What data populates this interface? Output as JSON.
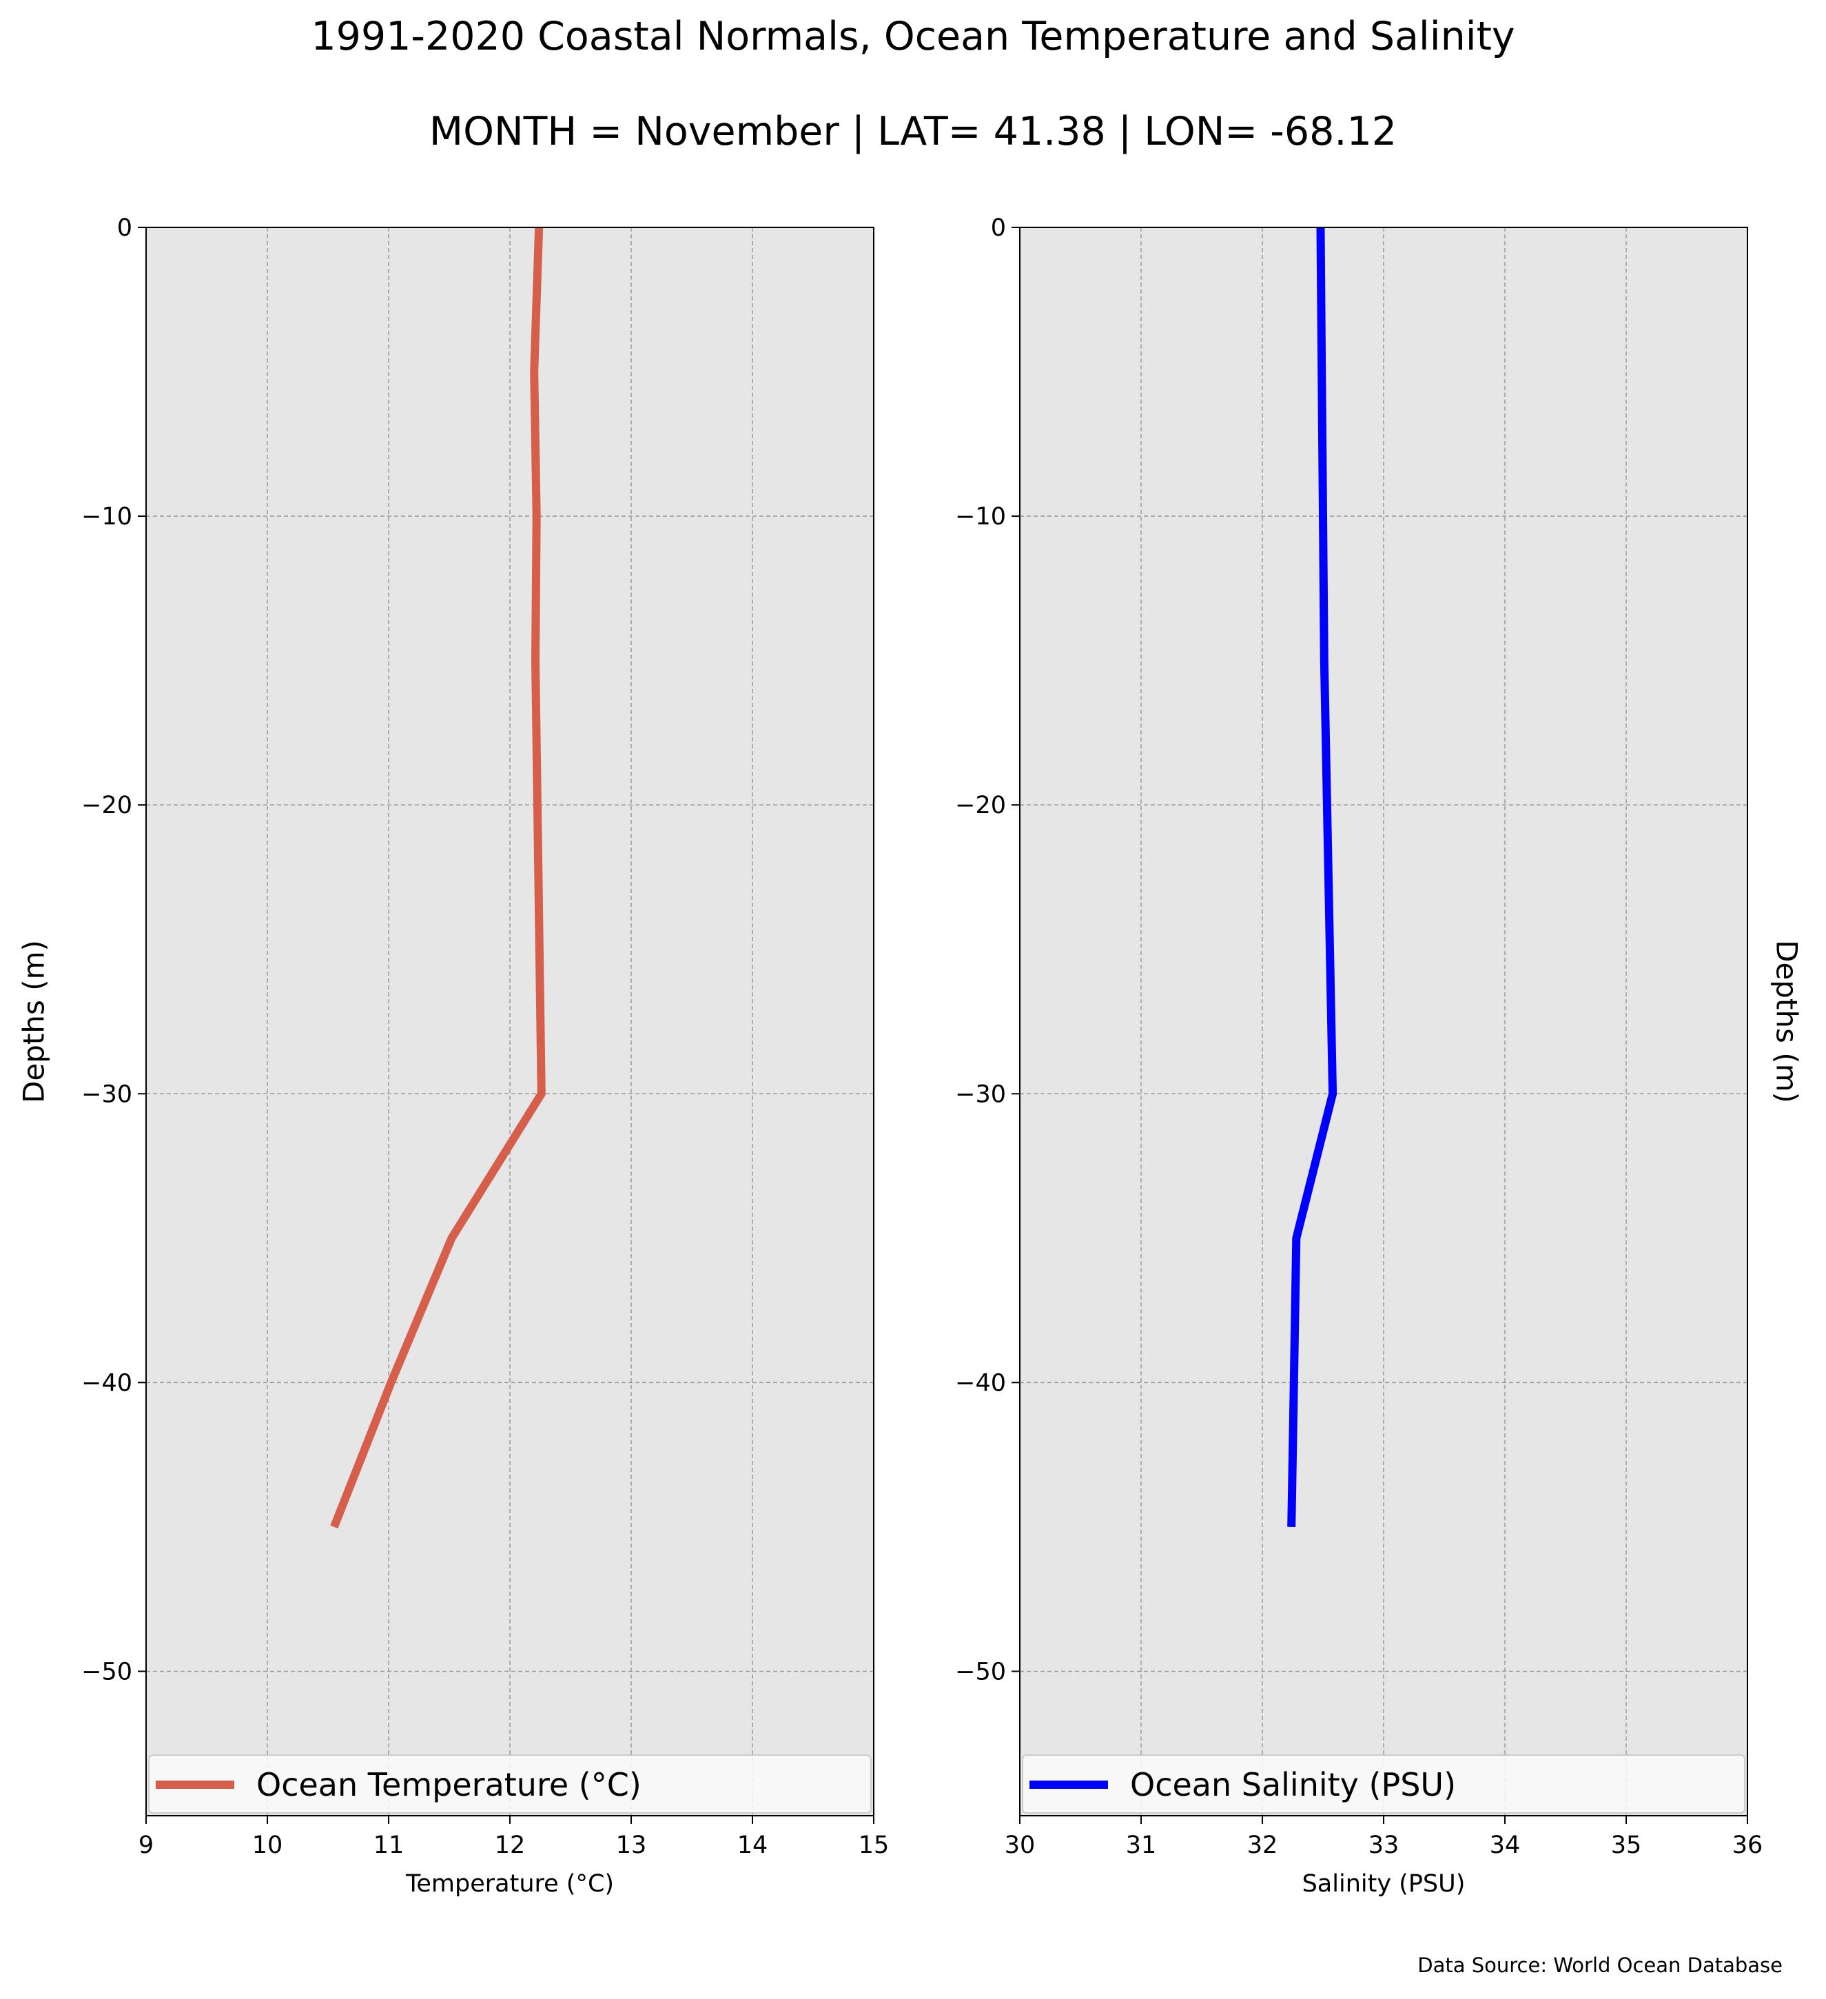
{
  "figure": {
    "title": "1991-2020 Coastal Normals, Ocean Temperature and Salinity",
    "subtitle": "MONTH = November | LAT= 41.38 | LON= -68.12",
    "source": "Data Source: World Ocean Database"
  },
  "chart_data": [
    {
      "type": "line",
      "xlabel": "Temperature ($^\\circ$C)",
      "xlabel_display": "Temperature (°C)",
      "ylabel": "Depths (m)",
      "xlim": [
        9,
        15
      ],
      "ylim": [
        -55,
        0
      ],
      "xticks": [
        "9",
        "10",
        "11",
        "12",
        "13",
        "14",
        "15"
      ],
      "yticks": [
        "0",
        "−10",
        "−20",
        "−30",
        "−40",
        "−50"
      ],
      "ytick_values": [
        0,
        -10,
        -20,
        -30,
        -40,
        -50
      ],
      "grid": true,
      "legend_placement": "lower center",
      "series": [
        {
          "name": "Ocean Temperature (°C)",
          "color": "#d65f4c",
          "x": [
            12.24,
            12.2,
            12.22,
            12.21,
            12.26,
            11.52,
            11.02,
            10.55
          ],
          "y": [
            0,
            -5,
            -10,
            -15,
            -30,
            -35,
            -40,
            -45
          ]
        }
      ]
    },
    {
      "type": "line",
      "xlabel": "Salinity (PSU)",
      "ylabel": "Depths (m)",
      "xlim": [
        30,
        36
      ],
      "ylim": [
        -55,
        0
      ],
      "xticks": [
        "30",
        "31",
        "32",
        "33",
        "34",
        "35",
        "36"
      ],
      "yticks": [
        "0",
        "−10",
        "−20",
        "−30",
        "−40",
        "−50"
      ],
      "ytick_values": [
        0,
        -10,
        -20,
        -30,
        -40,
        -50
      ],
      "grid": true,
      "legend_placement": "lower center",
      "series": [
        {
          "name": "Ocean Salinity (PSU)",
          "color": "#0000ff",
          "x": [
            32.48,
            32.49,
            32.5,
            32.51,
            32.58,
            32.28,
            32.26,
            32.24
          ],
          "y": [
            0,
            -5,
            -10,
            -15,
            -30,
            -35,
            -40,
            -45
          ]
        }
      ]
    }
  ]
}
